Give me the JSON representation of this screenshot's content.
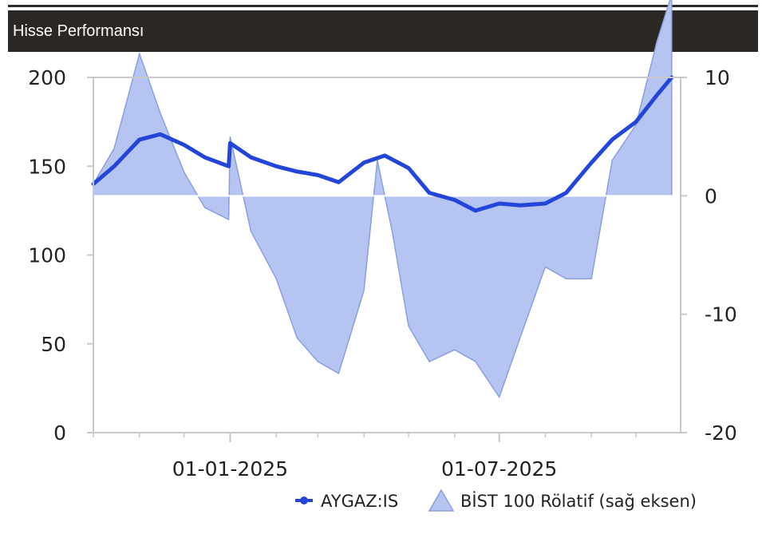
{
  "header": {
    "title": "Hisse Performansı"
  },
  "legend": {
    "series1": "AYGAZ:IS",
    "series2": "BİST 100 Rölatif (sağ eksen)"
  },
  "colors": {
    "line": "#2446d8",
    "area_fill": "#b6c4f2",
    "area_stroke": "#8a9fdc",
    "header_bg": "#2b2724",
    "axis": "#c9c9c9"
  },
  "chart_data": {
    "type": "line",
    "x_ticks": [
      "01-01-2025",
      "01-07-2025"
    ],
    "x_range": [
      "2024-10-01",
      "2025-10-31"
    ],
    "y_left": {
      "ylim": [
        0,
        200
      ],
      "ticks": [
        "0",
        "50",
        "100",
        "150",
        "200"
      ]
    },
    "y_right": {
      "ylim": [
        -20,
        10
      ],
      "ticks": [
        "-20",
        "-10",
        "0",
        "10"
      ]
    },
    "series": [
      {
        "name": "AYGAZ:IS",
        "axis": "left",
        "x": [
          "2024-10-01",
          "2024-10-15",
          "2024-11-01",
          "2024-11-15",
          "2024-12-01",
          "2024-12-15",
          "2024-12-31",
          "2025-01-01",
          "2025-01-15",
          "2025-02-01",
          "2025-02-15",
          "2025-03-01",
          "2025-03-15",
          "2025-04-01",
          "2025-04-15",
          "2025-05-01",
          "2025-05-15",
          "2025-06-01",
          "2025-06-15",
          "2025-07-01",
          "2025-07-15",
          "2025-08-01",
          "2025-08-15",
          "2025-09-01",
          "2025-09-15",
          "2025-10-01",
          "2025-10-15",
          "2025-10-25"
        ],
        "values": [
          140,
          150,
          165,
          168,
          162,
          155,
          150,
          163,
          155,
          150,
          147,
          145,
          141,
          152,
          156,
          149,
          135,
          131,
          125,
          129,
          128,
          129,
          135,
          152,
          165,
          175,
          190,
          200
        ]
      },
      {
        "name": "BİST 100 Rölatif (sağ eksen)",
        "axis": "right",
        "x": [
          "2024-10-01",
          "2024-10-15",
          "2024-11-01",
          "2024-11-15",
          "2024-12-01",
          "2024-12-15",
          "2024-12-31",
          "2025-01-01",
          "2025-01-15",
          "2025-02-01",
          "2025-02-15",
          "2025-03-01",
          "2025-03-15",
          "2025-04-01",
          "2025-04-10",
          "2025-04-20",
          "2025-05-01",
          "2025-05-15",
          "2025-06-01",
          "2025-06-15",
          "2025-07-01",
          "2025-07-15",
          "2025-08-01",
          "2025-08-15",
          "2025-09-01",
          "2025-09-15",
          "2025-10-01",
          "2025-10-15",
          "2025-10-25"
        ],
        "values": [
          1,
          4,
          12,
          7,
          2,
          -1,
          -2,
          5,
          -3,
          -7,
          -12,
          -14,
          -15,
          -8,
          3,
          -3,
          -11,
          -14,
          -13,
          -14,
          -17,
          -12,
          -6,
          -7,
          -7,
          3,
          6,
          13,
          17
        ]
      }
    ]
  }
}
